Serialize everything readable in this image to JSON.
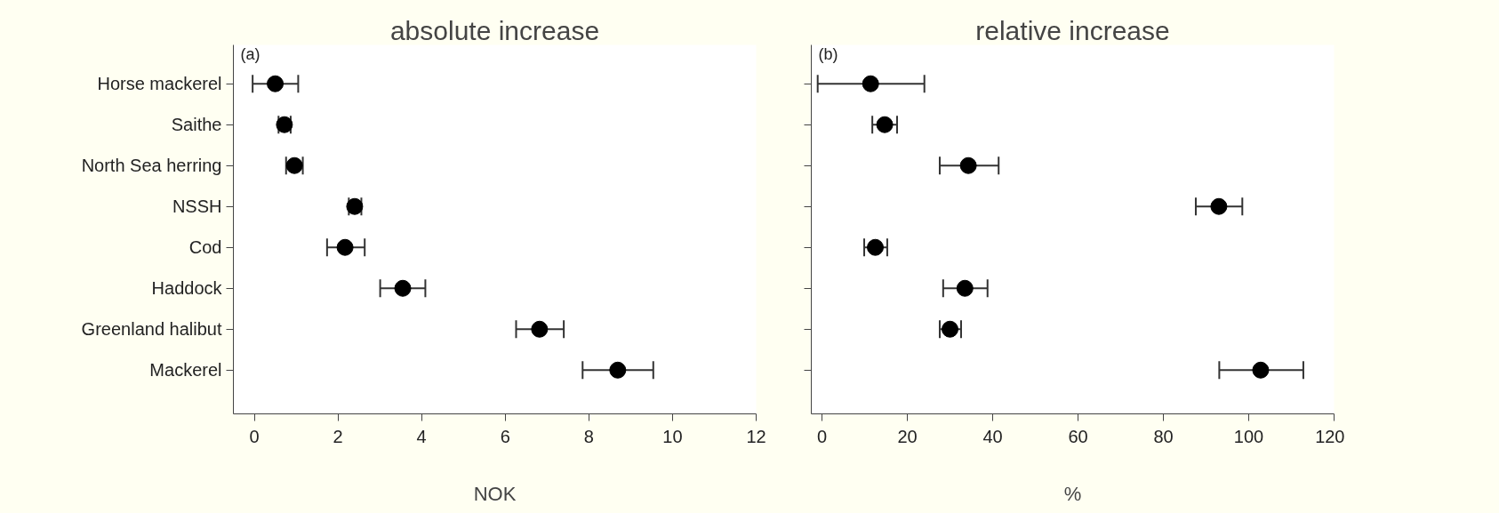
{
  "chart_data": [
    {
      "type": "scatter",
      "orientation": "horizontal",
      "title": "absolute increase",
      "xlabel": "NOK",
      "annotations": [
        "(a)"
      ],
      "marker": "circle",
      "grid": false,
      "categories": [
        "Horse mackerel",
        "Saithe",
        "North Sea herring",
        "NSSH",
        "Cod",
        "Haddock",
        "Greenland halibut",
        "Mackerel"
      ],
      "series": [
        {
          "color": "#000000",
          "values": [
            0.5,
            0.72,
            0.96,
            2.4,
            2.17,
            3.55,
            6.82,
            8.69
          ],
          "errors": [
            [
              -0.04,
              1.05
            ],
            [
              0.58,
              0.87
            ],
            [
              0.76,
              1.16
            ],
            [
              2.26,
              2.56
            ],
            [
              1.74,
              2.64
            ],
            [
              3.01,
              4.09
            ],
            [
              6.26,
              7.4
            ],
            [
              7.85,
              9.54
            ]
          ]
        }
      ],
      "xlim": [
        -0.5,
        12
      ],
      "xticks": [
        0,
        2,
        4,
        6,
        8,
        10,
        12
      ]
    },
    {
      "type": "scatter",
      "orientation": "horizontal",
      "title": "relative increase",
      "xlabel": "%",
      "annotations": [
        "(b)"
      ],
      "marker": "circle",
      "grid": false,
      "tick_labels": "x",
      "categories": [
        null,
        null,
        null,
        null,
        null,
        null,
        null,
        null
      ],
      "series": [
        {
          "color": "#000000",
          "values": [
            11.4,
            14.7,
            34.3,
            93.0,
            12.5,
            33.5,
            30.0,
            102.8
          ],
          "errors": [
            [
              -1.0,
              24.0
            ],
            [
              11.8,
              17.6
            ],
            [
              27.6,
              41.4
            ],
            [
              87.6,
              98.5
            ],
            [
              9.9,
              15.3
            ],
            [
              28.4,
              38.8
            ],
            [
              27.6,
              32.6
            ],
            [
              93.1,
              112.8
            ]
          ]
        }
      ],
      "xlim": [
        -2.5,
        120
      ],
      "xticks": [
        0,
        20,
        40,
        60,
        80,
        100,
        120
      ]
    }
  ]
}
